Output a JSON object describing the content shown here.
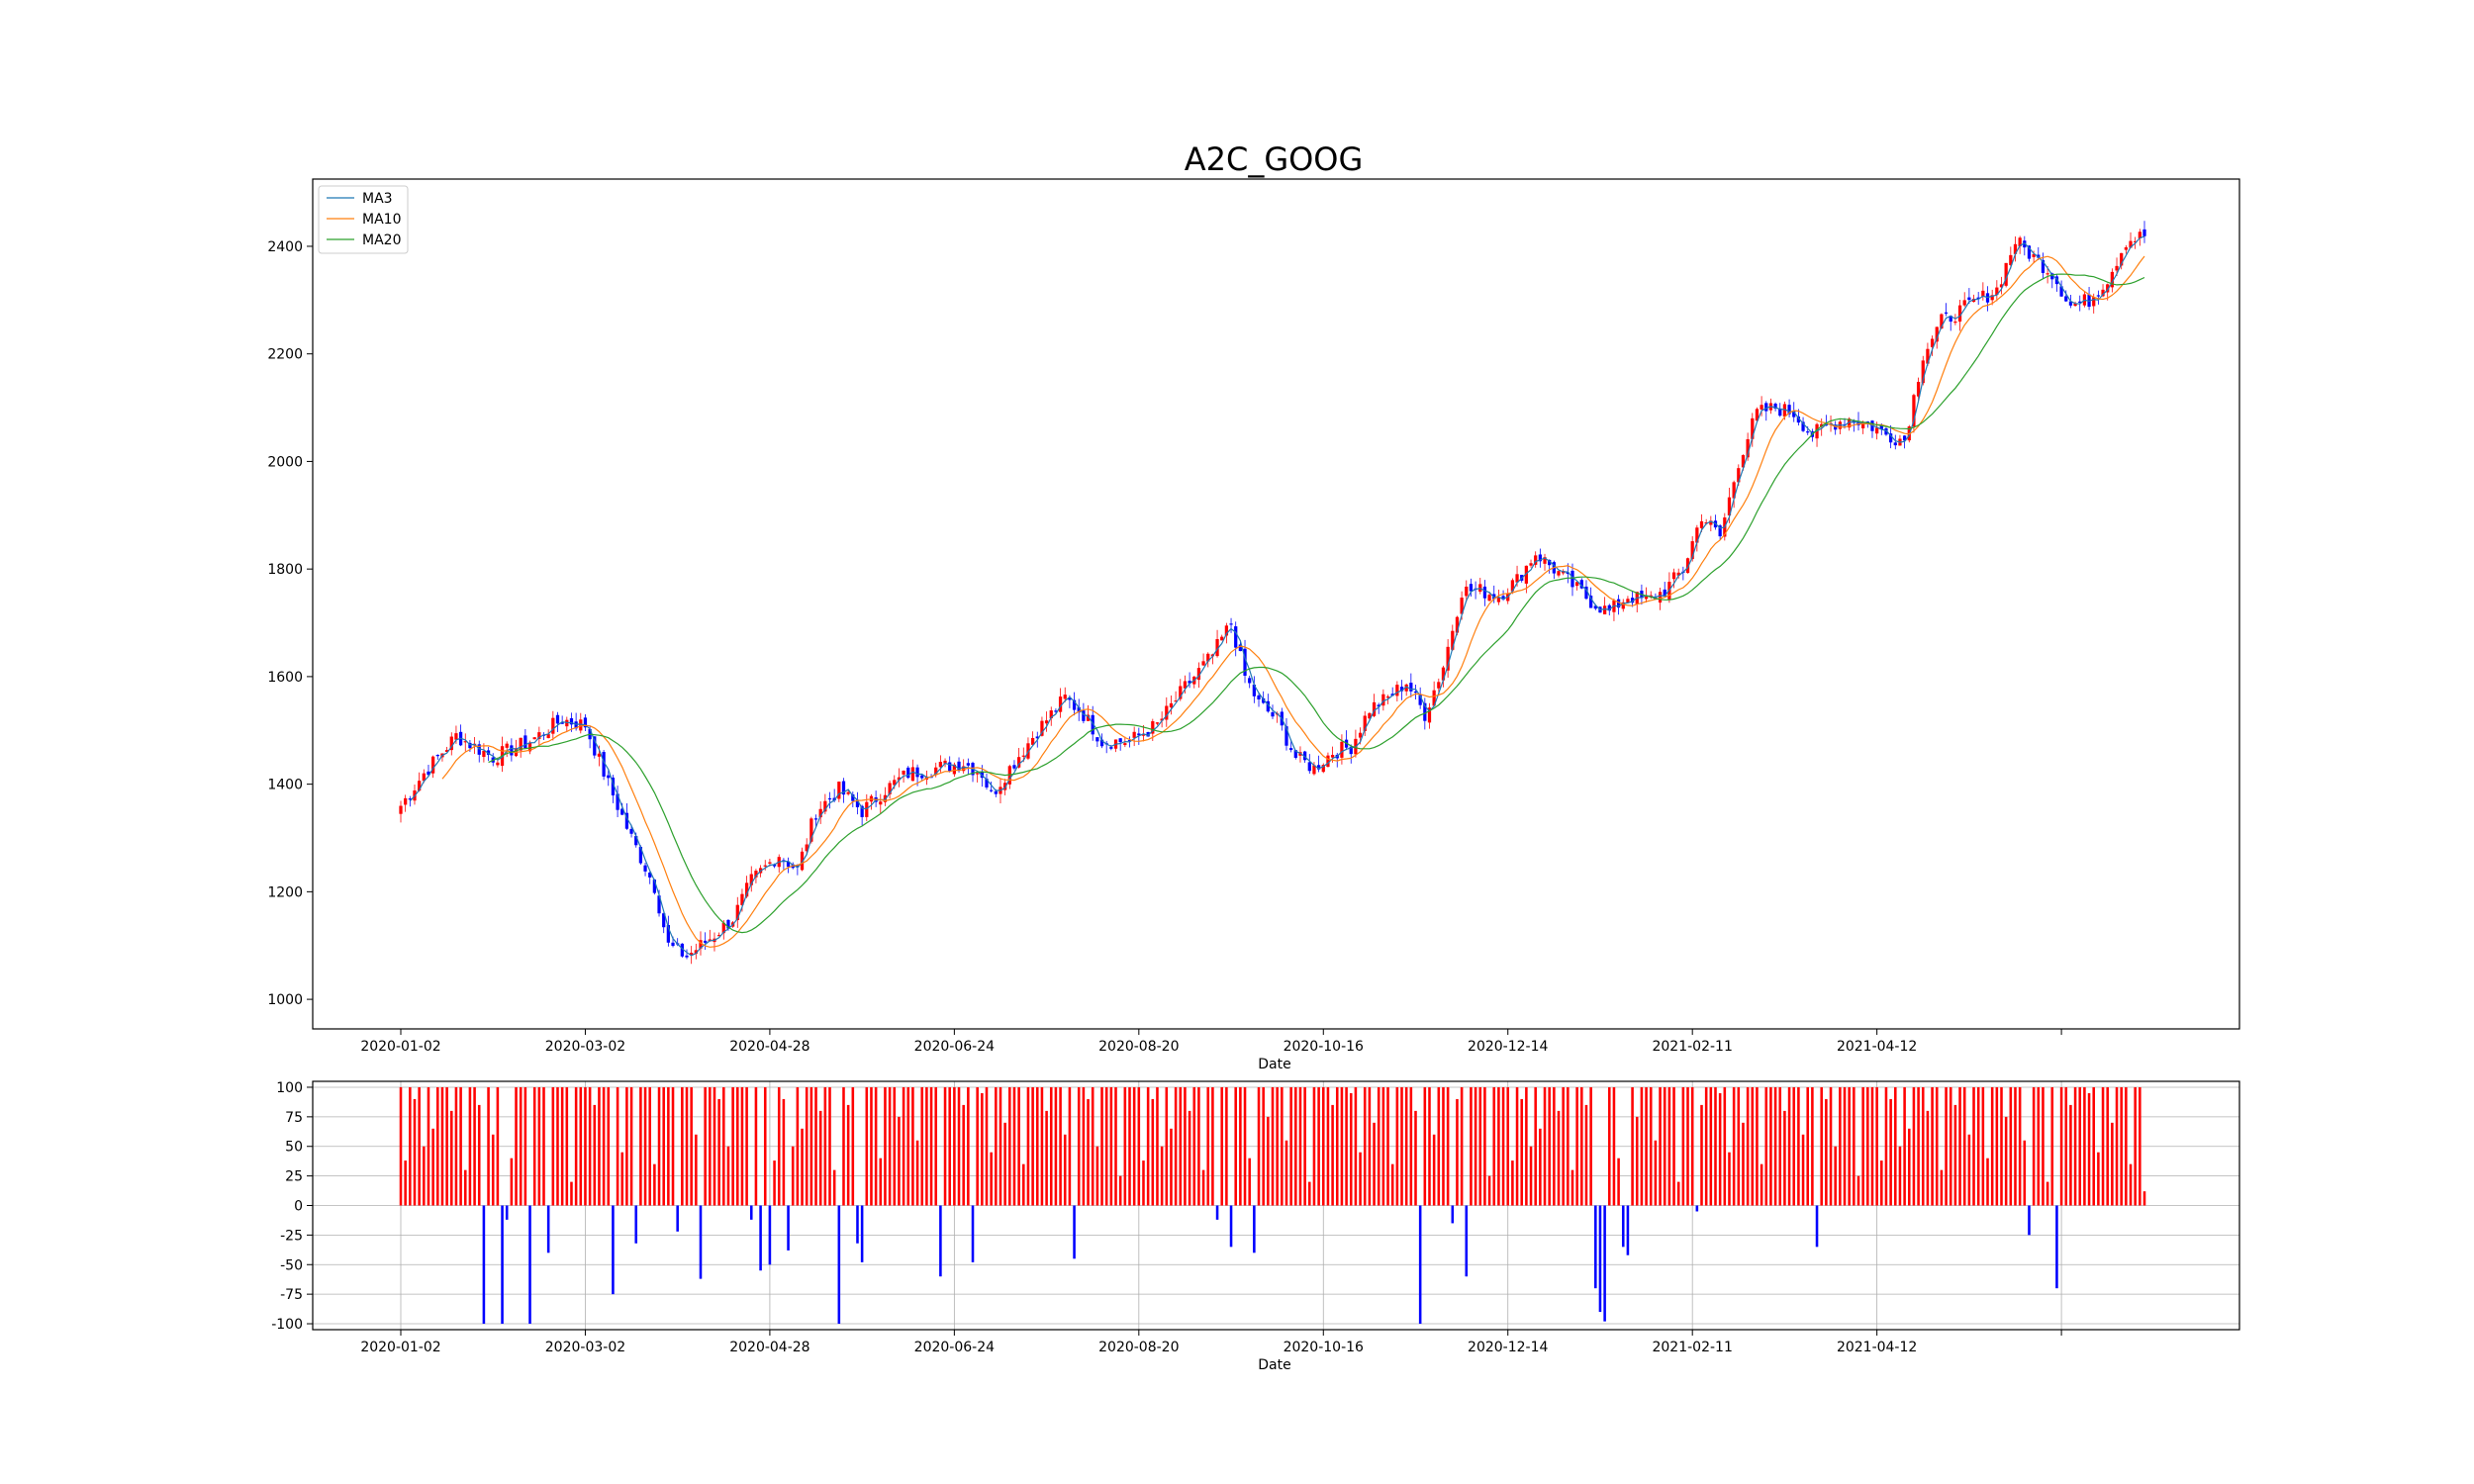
{
  "chart_data": [
    {
      "type": "candlestick",
      "title": "A2C_GOOG",
      "xlabel": "Date",
      "ylabel": "",
      "ylim": [
        945,
        2525
      ],
      "yticks": [
        1000,
        1200,
        1400,
        1600,
        1800,
        2000,
        2200,
        2400
      ],
      "xticks": [
        "2020-01-02",
        "2020-03-02",
        "2020-04-28",
        "2020-06-24",
        "2020-08-20",
        "2020-10-16",
        "2020-12-14",
        "2021-02-11",
        "2021-04-12"
      ],
      "legend": {
        "placement": "top-left",
        "entries": [
          "MA3",
          "MA10",
          "MA20"
        ]
      },
      "up_color": "#ff0000",
      "down_color": "#0000ff",
      "ma_colors": {
        "MA3": "#1f77b4",
        "MA10": "#ff7f0e",
        "MA20": "#2ca02c"
      },
      "close_anchors": [
        [
          0,
          1360
        ],
        [
          5,
          1420
        ],
        [
          12,
          1490
        ],
        [
          20,
          1450
        ],
        [
          28,
          1480
        ],
        [
          35,
          1520
        ],
        [
          40,
          1510
        ],
        [
          45,
          1400
        ],
        [
          50,
          1300
        ],
        [
          55,
          1210
        ],
        [
          58,
          1100
        ],
        [
          62,
          1080
        ],
        [
          68,
          1120
        ],
        [
          72,
          1150
        ],
        [
          76,
          1220
        ],
        [
          82,
          1270
        ],
        [
          86,
          1240
        ],
        [
          90,
          1350
        ],
        [
          95,
          1390
        ],
        [
          100,
          1350
        ],
        [
          105,
          1390
        ],
        [
          110,
          1420
        ],
        [
          116,
          1430
        ],
        [
          122,
          1440
        ],
        [
          126,
          1420
        ],
        [
          128,
          1380
        ],
        [
          132,
          1430
        ],
        [
          138,
          1500
        ],
        [
          144,
          1560
        ],
        [
          148,
          1530
        ],
        [
          152,
          1480
        ],
        [
          158,
          1480
        ],
        [
          164,
          1510
        ],
        [
          170,
          1580
        ],
        [
          176,
          1640
        ],
        [
          180,
          1700
        ],
        [
          183,
          1600
        ],
        [
          186,
          1550
        ],
        [
          190,
          1520
        ],
        [
          194,
          1450
        ],
        [
          198,
          1430
        ],
        [
          202,
          1460
        ],
        [
          206,
          1470
        ],
        [
          210,
          1540
        ],
        [
          214,
          1560
        ],
        [
          218,
          1590
        ],
        [
          222,
          1530
        ],
        [
          226,
          1620
        ],
        [
          230,
          1760
        ],
        [
          234,
          1760
        ],
        [
          238,
          1750
        ],
        [
          242,
          1780
        ],
        [
          246,
          1830
        ],
        [
          250,
          1800
        ],
        [
          254,
          1770
        ],
        [
          258,
          1740
        ],
        [
          262,
          1720
        ],
        [
          266,
          1750
        ],
        [
          270,
          1740
        ],
        [
          274,
          1760
        ],
        [
          278,
          1800
        ],
        [
          282,
          1900
        ],
        [
          286,
          1860
        ],
        [
          290,
          2000
        ],
        [
          294,
          2090
        ],
        [
          298,
          2100
        ],
        [
          302,
          2090
        ],
        [
          306,
          2050
        ],
        [
          310,
          2070
        ],
        [
          314,
          2080
        ],
        [
          318,
          2070
        ],
        [
          322,
          2050
        ],
        [
          326,
          2040
        ],
        [
          330,
          2200
        ],
        [
          334,
          2260
        ],
        [
          338,
          2280
        ],
        [
          342,
          2300
        ],
        [
          346,
          2320
        ],
        [
          350,
          2410
        ],
        [
          354,
          2380
        ],
        [
          358,
          2350
        ],
        [
          362,
          2290
        ],
        [
          366,
          2300
        ],
        [
          370,
          2340
        ],
        [
          374,
          2410
        ],
        [
          378,
          2420
        ]
      ],
      "session_count": 379
    },
    {
      "type": "bar",
      "xlabel": "Date",
      "ylim": [
        -105,
        105
      ],
      "yticks": [
        100,
        75,
        50,
        25,
        0,
        -25,
        -50,
        -75,
        -100
      ],
      "xticks": [
        "2020-01-02",
        "2020-03-02",
        "2020-04-28",
        "2020-06-24",
        "2020-08-20",
        "2020-10-16",
        "2020-12-14",
        "2021-02-11",
        "2021-04-12"
      ],
      "grid": true,
      "positive_color": "#ff0000",
      "negative_color": "#0000ff",
      "negative_bars": [
        [
          18,
          -100
        ],
        [
          22,
          -100
        ],
        [
          23,
          -12
        ],
        [
          28,
          -100
        ],
        [
          32,
          -40
        ],
        [
          46,
          -75
        ],
        [
          51,
          -32
        ],
        [
          60,
          -22
        ],
        [
          65,
          -62
        ],
        [
          76,
          -12
        ],
        [
          78,
          -55
        ],
        [
          80,
          -50
        ],
        [
          84,
          -38
        ],
        [
          95,
          -100
        ],
        [
          99,
          -32
        ],
        [
          100,
          -48
        ],
        [
          117,
          -60
        ],
        [
          124,
          -48
        ],
        [
          146,
          -45
        ],
        [
          177,
          -12
        ],
        [
          180,
          -35
        ],
        [
          185,
          -40
        ],
        [
          221,
          -100
        ],
        [
          228,
          -15
        ],
        [
          231,
          -60
        ],
        [
          259,
          -70
        ],
        [
          260,
          -90
        ],
        [
          261,
          -98
        ],
        [
          265,
          -35
        ],
        [
          266,
          -42
        ],
        [
          281,
          -5
        ],
        [
          307,
          -35
        ],
        [
          353,
          -25
        ],
        [
          359,
          -70
        ]
      ],
      "positive_values": [
        100,
        38,
        100,
        90,
        100,
        50,
        100,
        65,
        100,
        100,
        100,
        80,
        100,
        100,
        30,
        100,
        100,
        85,
        100,
        100,
        60,
        100,
        100,
        100,
        40,
        100,
        100,
        100,
        75,
        100,
        100,
        100,
        55,
        100,
        100,
        100,
        100,
        20,
        100,
        100,
        100,
        100,
        85,
        100,
        100,
        100,
        95,
        100,
        45,
        100,
        100,
        70,
        100,
        100,
        100,
        35,
        100,
        100,
        100,
        100,
        80,
        100,
        100,
        100,
        60,
        100,
        100,
        100,
        100,
        90,
        100,
        50,
        100,
        100,
        100,
        100,
        25,
        100,
        100,
        100
      ]
    }
  ]
}
